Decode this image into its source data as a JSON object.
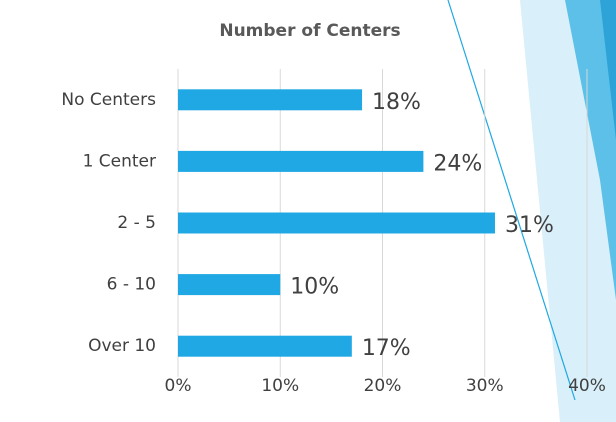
{
  "chart_data": {
    "type": "bar",
    "orientation": "horizontal",
    "title": "Number of Centers",
    "categories": [
      "No Centers",
      "1 Center",
      "2 - 5",
      "6 - 10",
      "Over 10"
    ],
    "values": [
      18,
      24,
      31,
      10,
      17
    ],
    "value_labels": [
      "18%",
      "24%",
      "31%",
      "10%",
      "17%"
    ],
    "color": "#1fa8e3",
    "xlim": [
      0,
      40
    ],
    "xticks": [
      {
        "value": 0,
        "label": "0%"
      },
      {
        "value": 10,
        "label": "10%"
      },
      {
        "value": 20,
        "label": "20%"
      },
      {
        "value": 30,
        "label": "30%"
      },
      {
        "value": 40,
        "label": "40%"
      }
    ],
    "grid": true
  }
}
